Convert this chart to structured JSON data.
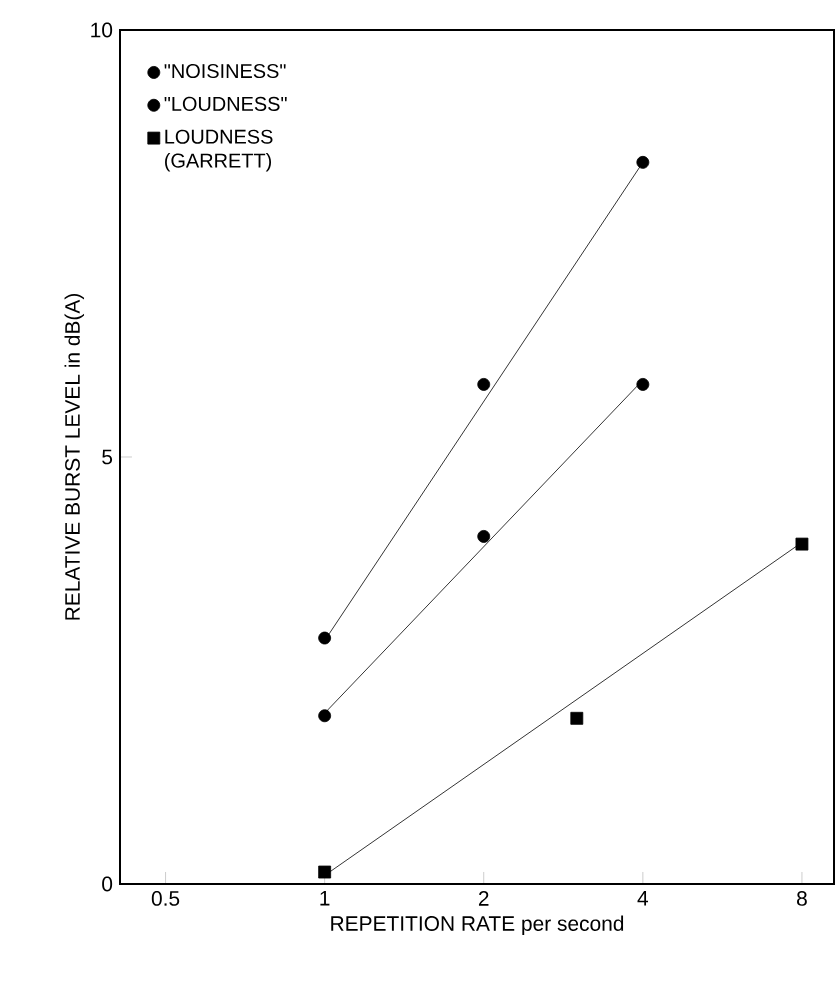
{
  "chart_data": {
    "type": "scatter",
    "xlabel": "REPETITION RATE per second",
    "ylabel": "RELATIVE BURST LEVEL in dB(A)",
    "log": "x",
    "xlim": [
      0.41,
      9.2
    ],
    "xticks": [
      0.5,
      1,
      2,
      4,
      8
    ],
    "ylim": [
      0,
      10
    ],
    "yticks": [
      0,
      5,
      10
    ],
    "legend": "top left",
    "grid": false,
    "series": [
      {
        "name": "\"NOISINESS\"",
        "color": "#000000",
        "marker": "circle",
        "x": [
          1,
          2,
          4
        ],
        "values": [
          2.88,
          5.85,
          8.45
        ]
      },
      {
        "name": "\"LOUDNESS\"",
        "color": "#000000",
        "marker": "circle",
        "x": [
          1,
          2,
          4
        ],
        "values": [
          1.97,
          4.07,
          5.85
        ]
      },
      {
        "name": "LOUDNESS (GARRETT)",
        "color": "#000000",
        "marker": "square",
        "x": [
          1,
          3,
          8
        ],
        "values": [
          0.14,
          1.94,
          3.98
        ]
      },
      {
        "type": "line",
        "color": "#000000",
        "marker": "none",
        "x": [
          1,
          4
        ],
        "values": [
          2.85,
          8.45
        ]
      },
      {
        "type": "line",
        "color": "#000000",
        "marker": "none",
        "x": [
          1,
          4
        ],
        "values": [
          2.0,
          5.9
        ]
      },
      {
        "type": "line",
        "color": "#000000",
        "marker": "none",
        "x": [
          1,
          8
        ],
        "values": [
          0.1,
          4.0
        ]
      }
    ]
  }
}
